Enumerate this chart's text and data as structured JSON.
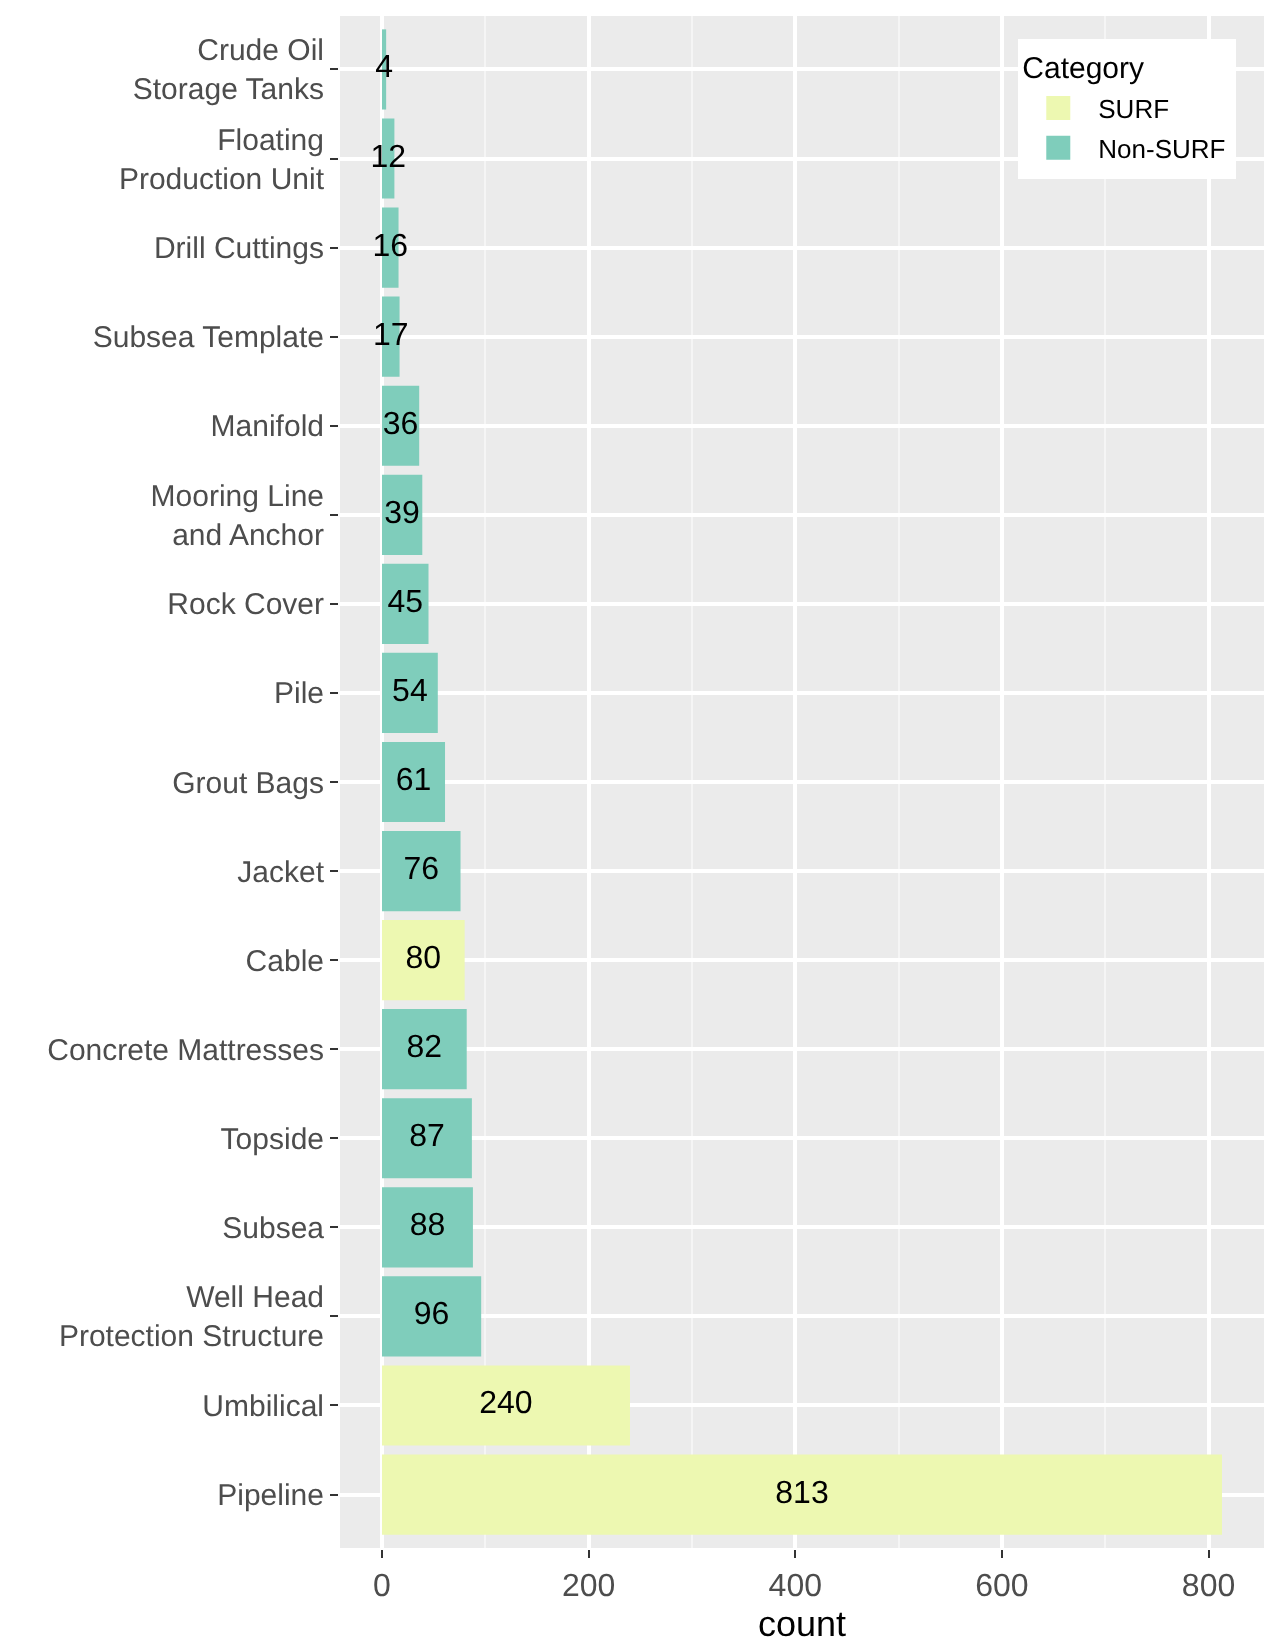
{
  "chart_data": {
    "type": "bar",
    "orientation": "horizontal",
    "xlabel": "count",
    "legend_title": "Category",
    "categories": [
      "Crude Oil\nStorage Tanks",
      "Floating\nProduction Unit",
      "Drill Cuttings",
      "Subsea Template",
      "Manifold",
      "Mooring Line\nand Anchor",
      "Rock Cover",
      "Pile",
      "Grout Bags",
      "Jacket",
      "Cable",
      "Concrete Mattresses",
      "Topside",
      "Subsea",
      "Well Head\nProtection Structure",
      "Umbilical",
      "Pipeline"
    ],
    "series": [
      {
        "name": "SURF",
        "color": "#edf8b1",
        "values": [
          null,
          null,
          null,
          null,
          null,
          null,
          null,
          null,
          null,
          null,
          80,
          null,
          null,
          null,
          null,
          240,
          813
        ]
      },
      {
        "name": "Non-SURF",
        "color": "#7fcdbb",
        "values": [
          4,
          12,
          16,
          17,
          36,
          39,
          45,
          54,
          61,
          76,
          null,
          82,
          87,
          88,
          96,
          null,
          null
        ]
      }
    ],
    "data_labels": true,
    "xlim": [
      -40.65,
      853.65
    ],
    "xticks": [
      0,
      200,
      400,
      600,
      800
    ],
    "grid": true,
    "legend": "top right"
  }
}
